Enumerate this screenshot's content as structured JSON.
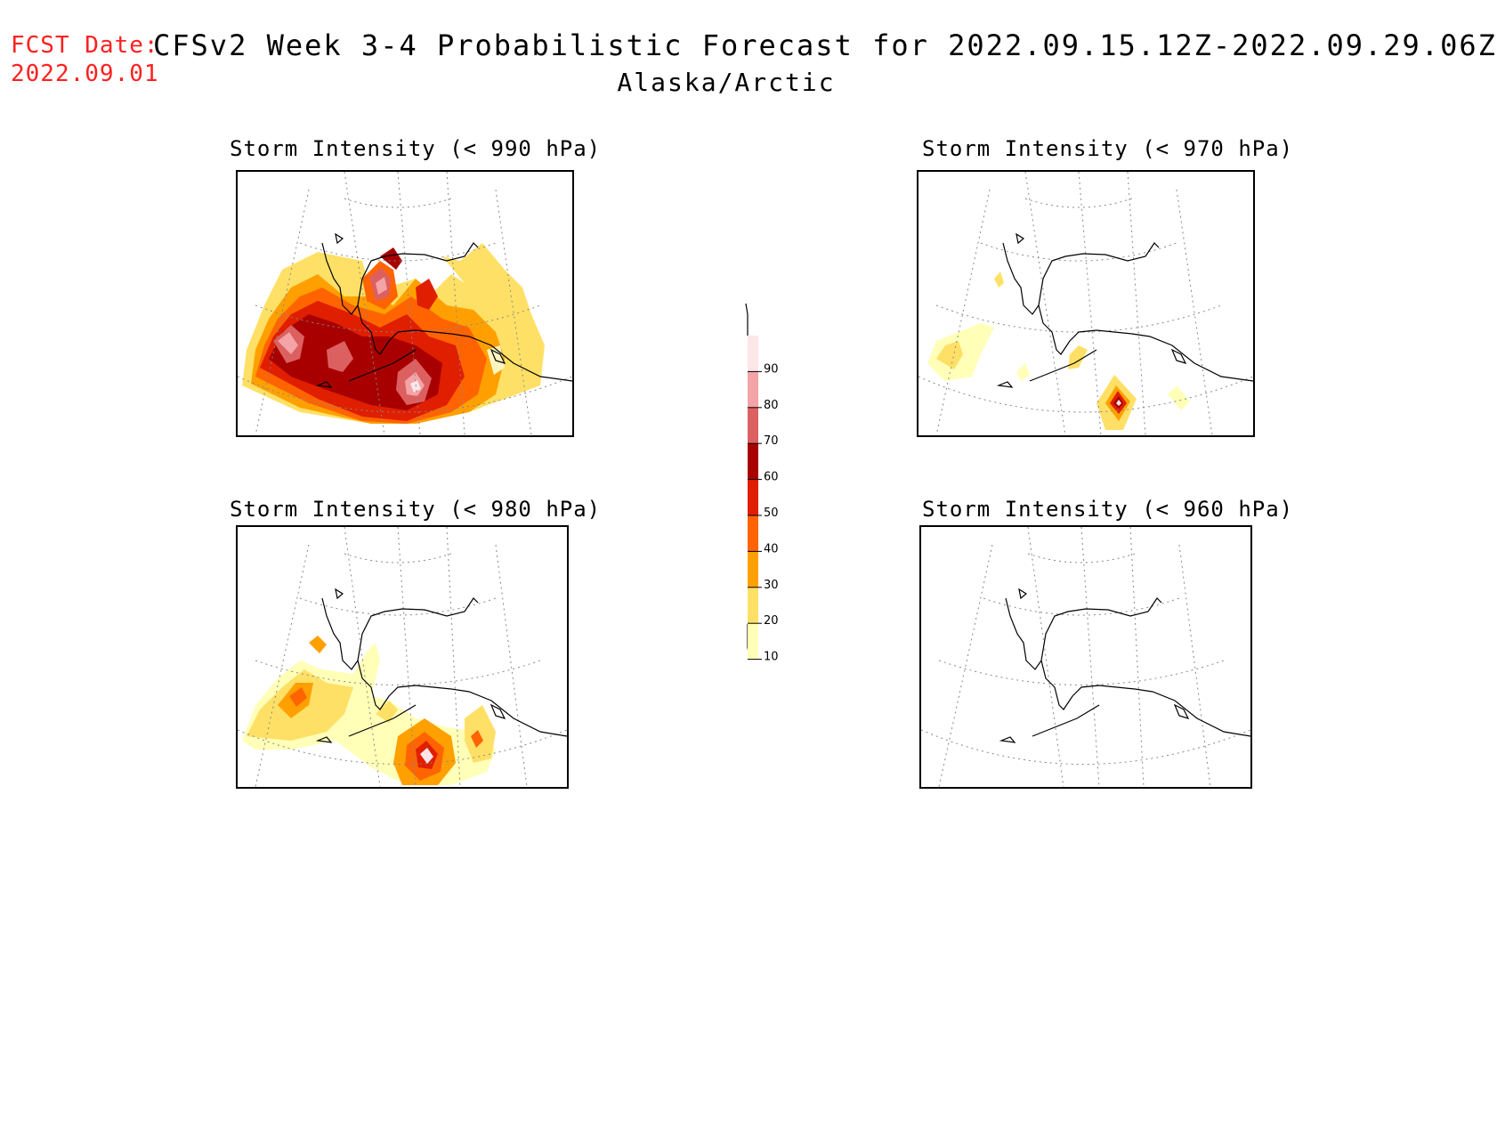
{
  "header": {
    "fcst_label": "FCST Date:",
    "fcst_date": "2022.09.01",
    "title": "CFSv2 Week 3-4 Probabilistic Forecast for 2022.09.15.12Z-2022.09.29.06Z",
    "region": "Alaska/Arctic"
  },
  "panels": [
    {
      "title": "Storm Intensity (< 990 hPa)"
    },
    {
      "title": "Storm Intensity (< 970 hPa)"
    },
    {
      "title": "Storm Intensity (< 980 hPa)"
    },
    {
      "title": "Storm Intensity (< 960 hPa)"
    }
  ],
  "colorbar": {
    "labels": [
      "90",
      "80",
      "70",
      "60",
      "50",
      "40",
      "30",
      "20",
      "10"
    ],
    "colors": [
      "#fde6e8",
      "#f4a3a6",
      "#dc6060",
      "#a80000",
      "#e01e00",
      "#ff6400",
      "#ffa000",
      "#ffe066",
      "#ffffb8"
    ]
  }
}
